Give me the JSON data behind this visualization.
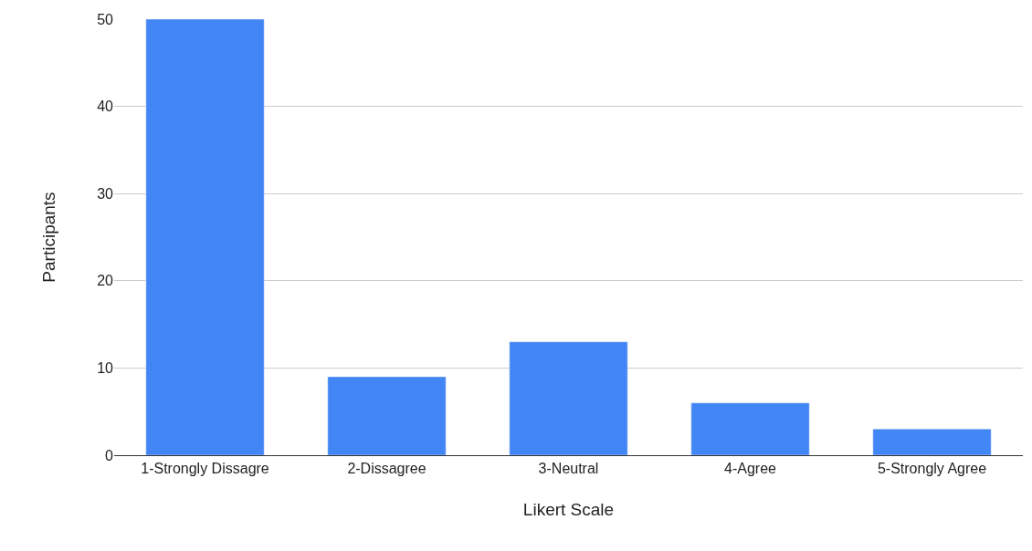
{
  "chart_data": {
    "type": "bar",
    "xlabel": "Likert Scale",
    "ylabel": "Participants",
    "categories": [
      "1-Strongly Dissagre",
      "2-Dissagree",
      "3-Neutral",
      "4-Agree",
      "5-Strongly Agree"
    ],
    "values": [
      50,
      9,
      13,
      6,
      3
    ],
    "color": "#4285f4",
    "ylim": [
      0,
      50
    ],
    "yticks": [
      0,
      10,
      20,
      30,
      40,
      50
    ],
    "grid": "y"
  }
}
